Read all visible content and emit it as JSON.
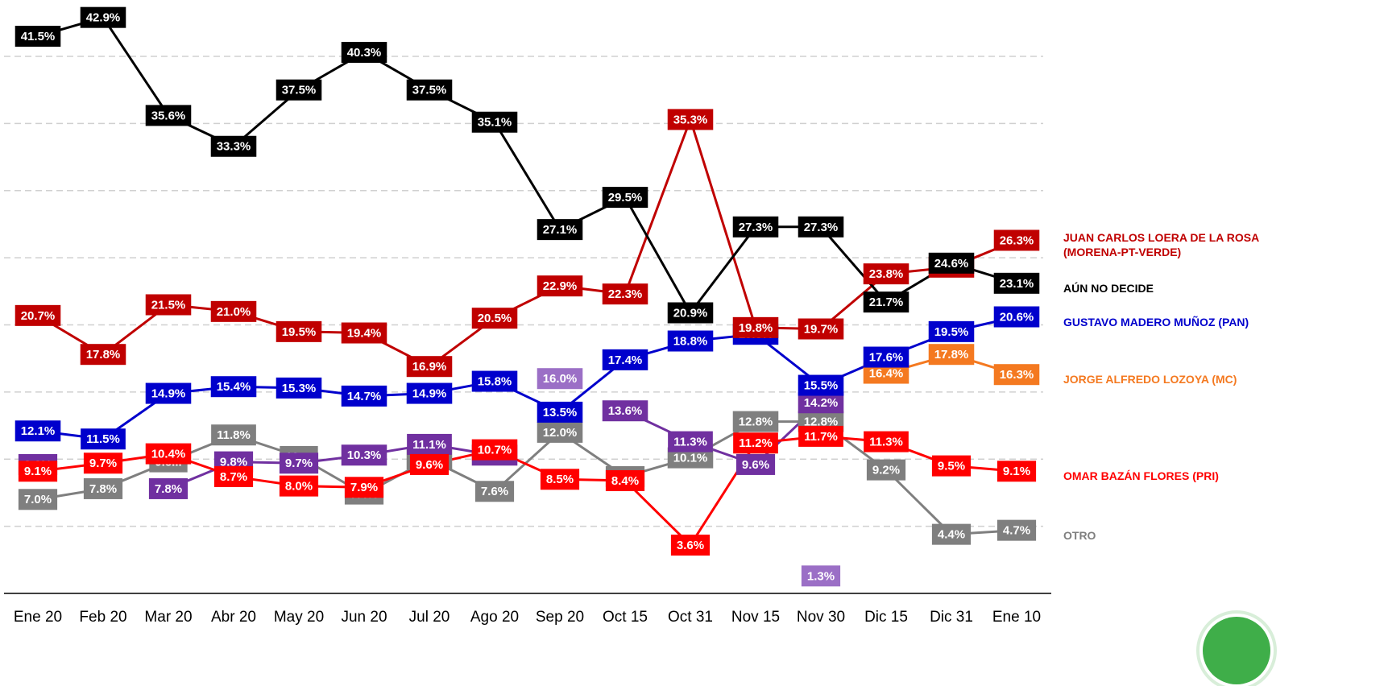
{
  "chart_data": {
    "type": "line",
    "categories": [
      "Ene 20",
      "Feb 20",
      "Mar 20",
      "Abr 20",
      "May 20",
      "Jun 20",
      "Jul 20",
      "Ago 20",
      "Sep 20",
      "Oct 15",
      "Oct 31",
      "Nov 15",
      "Nov 30",
      "Dic 15",
      "Dic 31",
      "Ene 10"
    ],
    "ylim": [
      0,
      44.2
    ],
    "yticks": [
      0,
      5,
      10,
      15,
      20,
      25,
      30,
      35,
      40
    ],
    "grid": true,
    "series": [
      {
        "name": "OTRO",
        "color": "#7f7f7f",
        "values": [
          7.0,
          7.8,
          9.8,
          11.8,
          10.2,
          7.4,
          10.0,
          7.6,
          12.0,
          8.7,
          10.1,
          12.8,
          12.8,
          9.2,
          4.4,
          4.7
        ],
        "value_labels": [
          "7.0%",
          "7.8%",
          "9.8...",
          "11.8%",
          "10....",
          "7.4%",
          "10.0%",
          "7.6%",
          "12.0%",
          "8.7%",
          "10.1%",
          "12.8%",
          "12.8%",
          "9.2%",
          "4.4%",
          "4.7%"
        ]
      },
      {
        "color": "#7030a0",
        "values": [
          9.6,
          null,
          7.8,
          9.8,
          9.7,
          10.3,
          11.1,
          10.3,
          null,
          13.6,
          11.3,
          9.6,
          14.2,
          null,
          null,
          null
        ],
        "value_labels": [
          "9.6%",
          null,
          "7.8%",
          "9.8%",
          "9.7%",
          "10.3%",
          "11.1%",
          "10.3%",
          null,
          "13.6%",
          "11.3%",
          "9.6%",
          "14.2%",
          null,
          null,
          null
        ]
      },
      {
        "color": "#9b6fc6",
        "values": [
          null,
          null,
          null,
          null,
          null,
          null,
          null,
          null,
          16.0,
          null,
          null,
          null,
          1.3,
          null,
          null,
          null
        ],
        "value_labels": [
          null,
          null,
          null,
          null,
          null,
          null,
          null,
          null,
          "16.0%",
          null,
          null,
          null,
          "1.3%",
          null,
          null,
          null
        ]
      },
      {
        "name": "OMAR BAZÁN FLORES (PRI)",
        "color": "#ff0000",
        "values": [
          9.1,
          9.7,
          10.4,
          8.7,
          8.0,
          7.9,
          9.6,
          10.7,
          8.5,
          8.4,
          3.6,
          11.2,
          11.7,
          11.3,
          9.5,
          9.1
        ],
        "value_labels": [
          "9.1%",
          "9.7%",
          "10.4%",
          "8.7%",
          "8.0%",
          "7.9%",
          "9.6%",
          "10.7%",
          "8.5%",
          "8.4%",
          "3.6%",
          "11.2%",
          "11.7%",
          "11.3%",
          "9.5%",
          "9.1%"
        ]
      },
      {
        "name": "JORGE ALFREDO LOZOYA (MC)",
        "color": "#f47920",
        "values": [
          null,
          null,
          null,
          null,
          null,
          null,
          null,
          null,
          null,
          null,
          null,
          null,
          null,
          16.4,
          17.8,
          16.3
        ],
        "value_labels": [
          null,
          null,
          null,
          null,
          null,
          null,
          null,
          null,
          null,
          null,
          null,
          null,
          null,
          "16.4%",
          "17.8%",
          "16.3%"
        ]
      },
      {
        "name": "GUSTAVO MADERO MUÑOZ (PAN)",
        "color": "#0000cc",
        "values": [
          12.1,
          11.5,
          14.9,
          15.4,
          15.3,
          14.7,
          14.9,
          15.8,
          13.5,
          17.4,
          18.8,
          19.3,
          15.5,
          17.6,
          19.5,
          20.6
        ],
        "value_labels": [
          "12.1%",
          "11.5%",
          "14.9%",
          "15.4%",
          "15.3%",
          "14.7%",
          "14.9%",
          "15.8%",
          "13.5%",
          "17.4%",
          "18.8%",
          "19.3%",
          "15.5%",
          "17.6%",
          "19.5%",
          "20.6%"
        ]
      },
      {
        "name": "JUAN CARLOS LOERA DE LA ROSA (MORENA-PT-VERDE)",
        "color": "#c00000",
        "values": [
          20.7,
          17.8,
          21.5,
          21.0,
          19.5,
          19.4,
          16.9,
          20.5,
          22.9,
          22.3,
          35.3,
          19.8,
          19.7,
          23.8,
          24.3,
          26.3
        ],
        "value_labels": [
          "20.7%",
          "17.8%",
          "21.5%",
          "21.0%",
          "19.5%",
          "19.4%",
          "16.9%",
          "20.5%",
          "22.9%",
          "22.3%",
          "35.3%",
          "19.8%",
          "19.7%",
          "23.8%",
          "24.3%",
          "26.3%"
        ]
      },
      {
        "name": "AÚN NO DECIDE",
        "color": "#000000",
        "values": [
          41.5,
          42.9,
          35.6,
          33.3,
          37.5,
          40.3,
          37.5,
          35.1,
          27.1,
          29.5,
          20.9,
          27.3,
          27.3,
          21.7,
          24.6,
          23.1
        ],
        "value_labels": [
          "41.5%",
          "42.9%",
          "35.6%",
          "33.3%",
          "37.5%",
          "40.3%",
          "37.5%",
          "35.1%",
          "27.1%",
          "29.5%",
          "20.9%",
          "27.3%",
          "27.3%",
          "21.7%",
          "24.6%",
          "23.1%"
        ]
      }
    ]
  }
}
